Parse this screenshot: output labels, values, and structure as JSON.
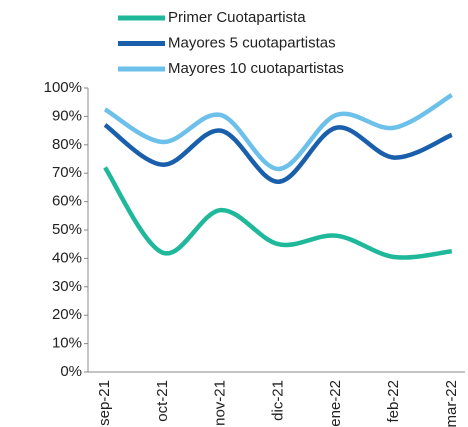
{
  "chart_data": {
    "type": "line",
    "categories": [
      "sep-21",
      "oct-21",
      "nov-21",
      "dic-21",
      "ene-22",
      "feb-22",
      "mar-22"
    ],
    "series": [
      {
        "name": "Primer Cuotapartista",
        "color": "#1fb89a",
        "values": [
          72,
          42,
          57,
          45,
          48,
          40.5,
          42.5
        ]
      },
      {
        "name": "Mayores 5 cuotapartistas",
        "color": "#1a5fac",
        "values": [
          87,
          73,
          85,
          67,
          86,
          75.5,
          83.5
        ]
      },
      {
        "name": "Mayores 10 cuotapartistas",
        "color": "#6cc0ea",
        "values": [
          92.5,
          81,
          90.5,
          71.5,
          90.5,
          86,
          97.5
        ]
      }
    ],
    "ylim": [
      0,
      100
    ],
    "yticks": [
      {
        "value": 0,
        "label": "0%"
      },
      {
        "value": 10,
        "label": "10%"
      },
      {
        "value": 20,
        "label": "20%"
      },
      {
        "value": 30,
        "label": "30%"
      },
      {
        "value": 40,
        "label": "40%"
      },
      {
        "value": 50,
        "label": "50%"
      },
      {
        "value": 60,
        "label": "60%"
      },
      {
        "value": 70,
        "label": "70%"
      },
      {
        "value": 80,
        "label": "80%"
      },
      {
        "value": 90,
        "label": "90%"
      },
      {
        "value": 100,
        "label": "100%"
      }
    ],
    "legend": "top",
    "grid": false
  }
}
